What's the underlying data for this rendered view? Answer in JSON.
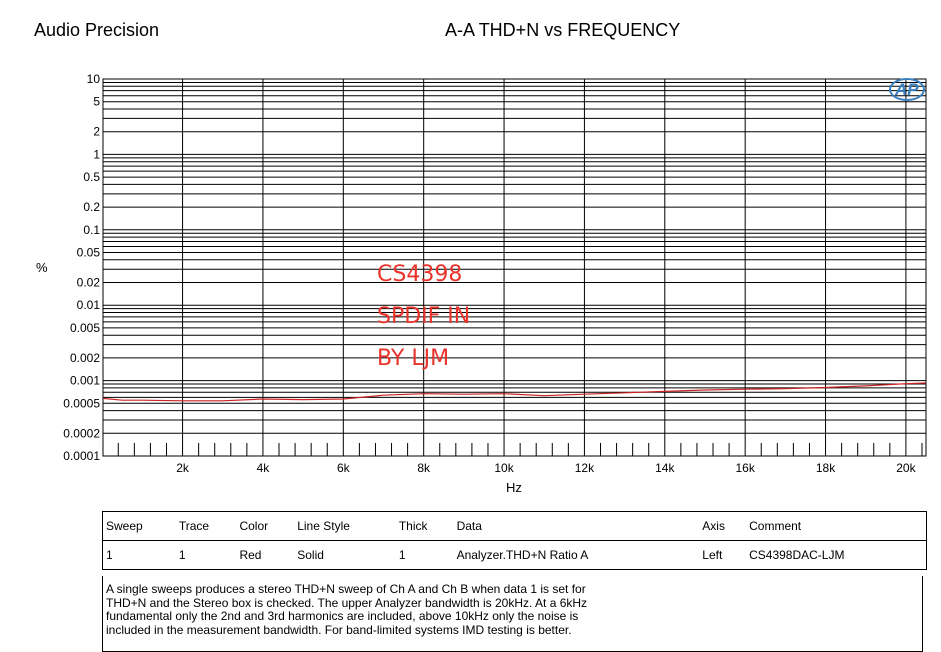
{
  "header": {
    "brand": "Audio Precision",
    "title": "A-A THD+N vs FREQUENCY"
  },
  "logo": {
    "text": "AP"
  },
  "annotation": {
    "lines": [
      "CS4398",
      "SPDIF IN",
      "BY LJM"
    ],
    "color": "#e8342a"
  },
  "chart_data": {
    "type": "line",
    "title": "A-A THD+N vs FREQUENCY",
    "xlabel": "Hz",
    "ylabel": "%",
    "xscale": "linear",
    "yscale": "log",
    "xlim": [
      20,
      20500
    ],
    "ylim": [
      0.0001,
      10
    ],
    "grid": true,
    "x_ticks": [
      {
        "v": 2000,
        "label": "2k"
      },
      {
        "v": 4000,
        "label": "4k"
      },
      {
        "v": 6000,
        "label": "6k"
      },
      {
        "v": 8000,
        "label": "8k"
      },
      {
        "v": 10000,
        "label": "10k"
      },
      {
        "v": 12000,
        "label": "12k"
      },
      {
        "v": 14000,
        "label": "14k"
      },
      {
        "v": 16000,
        "label": "16k"
      },
      {
        "v": 18000,
        "label": "18k"
      },
      {
        "v": 20000,
        "label": "20k"
      }
    ],
    "y_ticks": [
      {
        "v": 10,
        "label": "10"
      },
      {
        "v": 5,
        "label": "5"
      },
      {
        "v": 2,
        "label": "2"
      },
      {
        "v": 1,
        "label": "1"
      },
      {
        "v": 0.5,
        "label": "0.5"
      },
      {
        "v": 0.2,
        "label": "0.2"
      },
      {
        "v": 0.1,
        "label": "0.1"
      },
      {
        "v": 0.05,
        "label": "0.05"
      },
      {
        "v": 0.02,
        "label": "0.02"
      },
      {
        "v": 0.01,
        "label": "0.01"
      },
      {
        "v": 0.005,
        "label": "0.005"
      },
      {
        "v": 0.002,
        "label": "0.002"
      },
      {
        "v": 0.001,
        "label": "0.001"
      },
      {
        "v": 0.0005,
        "label": "0.0005"
      },
      {
        "v": 0.0002,
        "label": "0.0002"
      },
      {
        "v": 0.0001,
        "label": "0.0001"
      }
    ],
    "series": [
      {
        "color": "#cc2222",
        "x": [
          20,
          500,
          1000,
          2000,
          3000,
          4000,
          5000,
          6000,
          7000,
          8000,
          9000,
          10000,
          11000,
          12000,
          13000,
          14000,
          15000,
          16000,
          17000,
          18000,
          19000,
          20000,
          20500
        ],
        "y": [
          0.00058,
          0.00055,
          0.00055,
          0.00054,
          0.00054,
          0.00057,
          0.00056,
          0.00057,
          0.00064,
          0.00067,
          0.00066,
          0.00067,
          0.00063,
          0.00066,
          0.00069,
          0.00072,
          0.00075,
          0.00077,
          0.00078,
          0.00081,
          0.00085,
          0.00091,
          0.00093
        ]
      }
    ]
  },
  "legend_table": {
    "headers": [
      "Sweep",
      "Trace",
      "Color",
      "Line Style",
      "Thick",
      "Data",
      "Axis",
      "Comment"
    ],
    "rows": [
      [
        "1",
        "1",
        "Red",
        "Solid",
        "1",
        "Analyzer.THD+N Ratio A",
        "Left",
        "CS4398DAC-LJM"
      ]
    ]
  },
  "notes": [
    "A single sweeps produces a stereo THD+N sweep of Ch A and Ch B when data 1 is set for",
    "THD+N and the Stereo box is checked.  The upper Analyzer bandwidth is 20kHz.  At a 6kHz",
    "fundamental only the 2nd and 3rd harmonics are included, above 10kHz only the noise is",
    "included in the measurement bandwidth.  For band-limited systems IMD testing is better."
  ]
}
